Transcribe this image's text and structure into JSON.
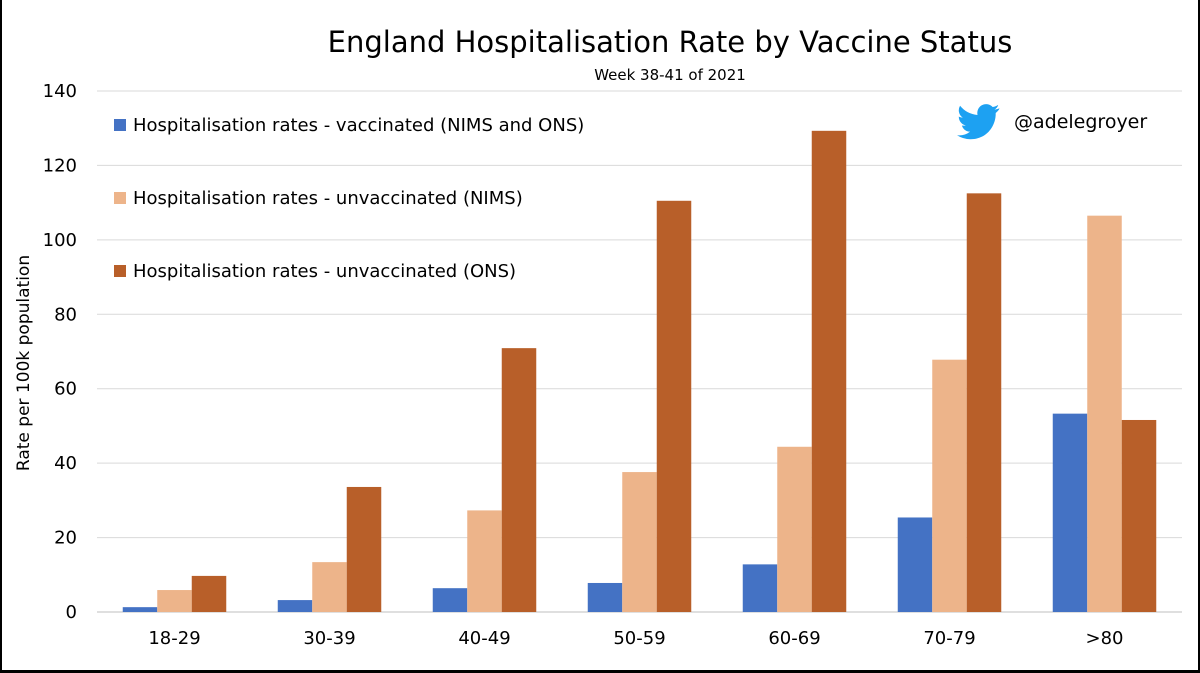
{
  "chart_data": {
    "type": "bar",
    "title": "England Hospitalisation Rate by Vaccine Status",
    "subtitle": "Week 38-41 of 2021",
    "xlabel": "",
    "ylabel": "Rate per 100k population",
    "ylim": [
      0,
      140
    ],
    "yticks": [
      0,
      20,
      40,
      60,
      80,
      100,
      120,
      140
    ],
    "ytick_labels": [
      "0",
      "20",
      "40",
      "60",
      "80",
      "100",
      "120",
      "140"
    ],
    "grid": true,
    "legend_position": "top-left",
    "categories": [
      "18-29",
      "30-39",
      "40-49",
      "50-59",
      "60-69",
      "70-79",
      ">80"
    ],
    "series": [
      {
        "name": "Hospitalisation rates - vaccinated (NIMS and ONS)",
        "color": "#4472C4",
        "values": [
          1.3,
          3.2,
          6.4,
          7.8,
          12.8,
          25.4,
          53.3
        ]
      },
      {
        "name": "Hospitalisation rates - unvaccinated (NIMS)",
        "color": "#EDB48A",
        "values": [
          5.9,
          13.4,
          27.3,
          37.6,
          44.4,
          67.8,
          106.5
        ]
      },
      {
        "name": "Hospitalisation rates - unvaccinated (ONS)",
        "color": "#B85F29",
        "values": [
          9.7,
          33.6,
          70.9,
          110.5,
          129.3,
          112.5,
          51.6
        ]
      }
    ]
  },
  "attribution": {
    "icon": "twitter-bird-icon",
    "icon_color": "#1DA1F2",
    "handle": "@adelegroyer"
  }
}
